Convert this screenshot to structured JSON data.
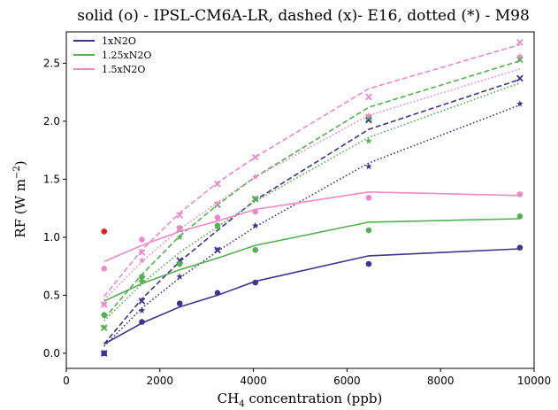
{
  "chart_data": {
    "type": "line",
    "title": "solid (o) - IPSL-CM6A-LR, dashed (x)- E16, dotted (*) - M98",
    "xlabel_main": "CH",
    "xlabel_sub": "4",
    "xlabel_rest": " concentration (ppb)",
    "ylabel_main": "RF (W m",
    "ylabel_sup": "−2",
    "ylabel_close": ")",
    "xlim": [
      0,
      10000
    ],
    "ylim": [
      -0.13,
      2.77
    ],
    "xticks": [
      0,
      2000,
      4000,
      6000,
      8000,
      10000
    ],
    "yticks": [
      0.0,
      0.5,
      1.0,
      1.5,
      2.0,
      2.5
    ],
    "xtick_labels": [
      "0",
      "2000",
      "4000",
      "6000",
      "8000",
      "10000"
    ],
    "ytick_labels": [
      "0.0",
      "0.5",
      "1.0",
      "1.5",
      "2.0",
      "2.5"
    ],
    "legend_position": "upper-left",
    "grid": false,
    "extra_point": {
      "x": 808,
      "y": 1.05,
      "color": "#e8191b"
    },
    "series": [
      {
        "name": "1xN2O",
        "color": "#3f3590",
        "x": [
          808,
          1616,
          2424,
          3232,
          4040,
          6464,
          9696
        ],
        "ipsl_line": [
          0.08,
          0.26,
          0.4,
          0.5,
          0.62,
          0.84,
          0.9
        ],
        "ipsl_points": [
          0.0,
          0.27,
          0.43,
          0.52,
          0.61,
          0.77,
          0.91
        ],
        "e16_line": [
          0.08,
          0.47,
          0.79,
          1.06,
          1.32,
          1.93,
          2.36
        ],
        "e16_points": [
          0.0,
          0.45,
          0.8,
          0.89,
          1.33,
          2.01,
          2.37
        ],
        "m98_line": [
          0.06,
          0.39,
          0.65,
          0.88,
          1.09,
          1.64,
          2.14
        ],
        "m98_points": [
          0.0,
          0.37,
          0.66,
          0.89,
          1.1,
          1.61,
          2.15
        ]
      },
      {
        "name": "1.25xN2O",
        "color": "#55b04f",
        "x": [
          808,
          1616,
          2424,
          3232,
          4040,
          6464,
          9696
        ],
        "ipsl_line": [
          0.45,
          0.6,
          0.72,
          0.82,
          0.93,
          1.13,
          1.16
        ],
        "ipsl_points": [
          0.33,
          0.66,
          0.77,
          1.1,
          0.89,
          1.06,
          1.18
        ],
        "e16_line": [
          0.3,
          0.68,
          1.01,
          1.28,
          1.52,
          2.12,
          2.52
        ],
        "e16_points": [
          0.22,
          0.64,
          1.07,
          1.28,
          1.33,
          2.03,
          2.53
        ],
        "m98_line": [
          0.28,
          0.6,
          0.87,
          1.09,
          1.31,
          1.86,
          2.33
        ],
        "m98_points": [
          0.22,
          0.62,
          1.0,
          1.09,
          1.33,
          1.83,
          2.54
        ]
      },
      {
        "name": "1.5xN2O",
        "color": "#ee88c8",
        "x": [
          808,
          1616,
          2424,
          3232,
          4040,
          6464,
          9696
        ],
        "ipsl_line": [
          0.79,
          0.93,
          1.05,
          1.14,
          1.24,
          1.39,
          1.36
        ],
        "ipsl_points": [
          0.73,
          0.98,
          1.08,
          1.17,
          1.22,
          1.34,
          1.37
        ],
        "e16_line": [
          0.49,
          0.89,
          1.21,
          1.47,
          1.69,
          2.28,
          2.66
        ],
        "e16_points": [
          0.42,
          0.87,
          1.19,
          1.46,
          1.69,
          2.21,
          2.68
        ],
        "m98_line": [
          0.46,
          0.79,
          1.07,
          1.3,
          1.52,
          2.05,
          2.45
        ],
        "m98_points": [
          0.42,
          0.8,
          1.08,
          1.29,
          1.52,
          2.05,
          2.56
        ]
      }
    ]
  }
}
